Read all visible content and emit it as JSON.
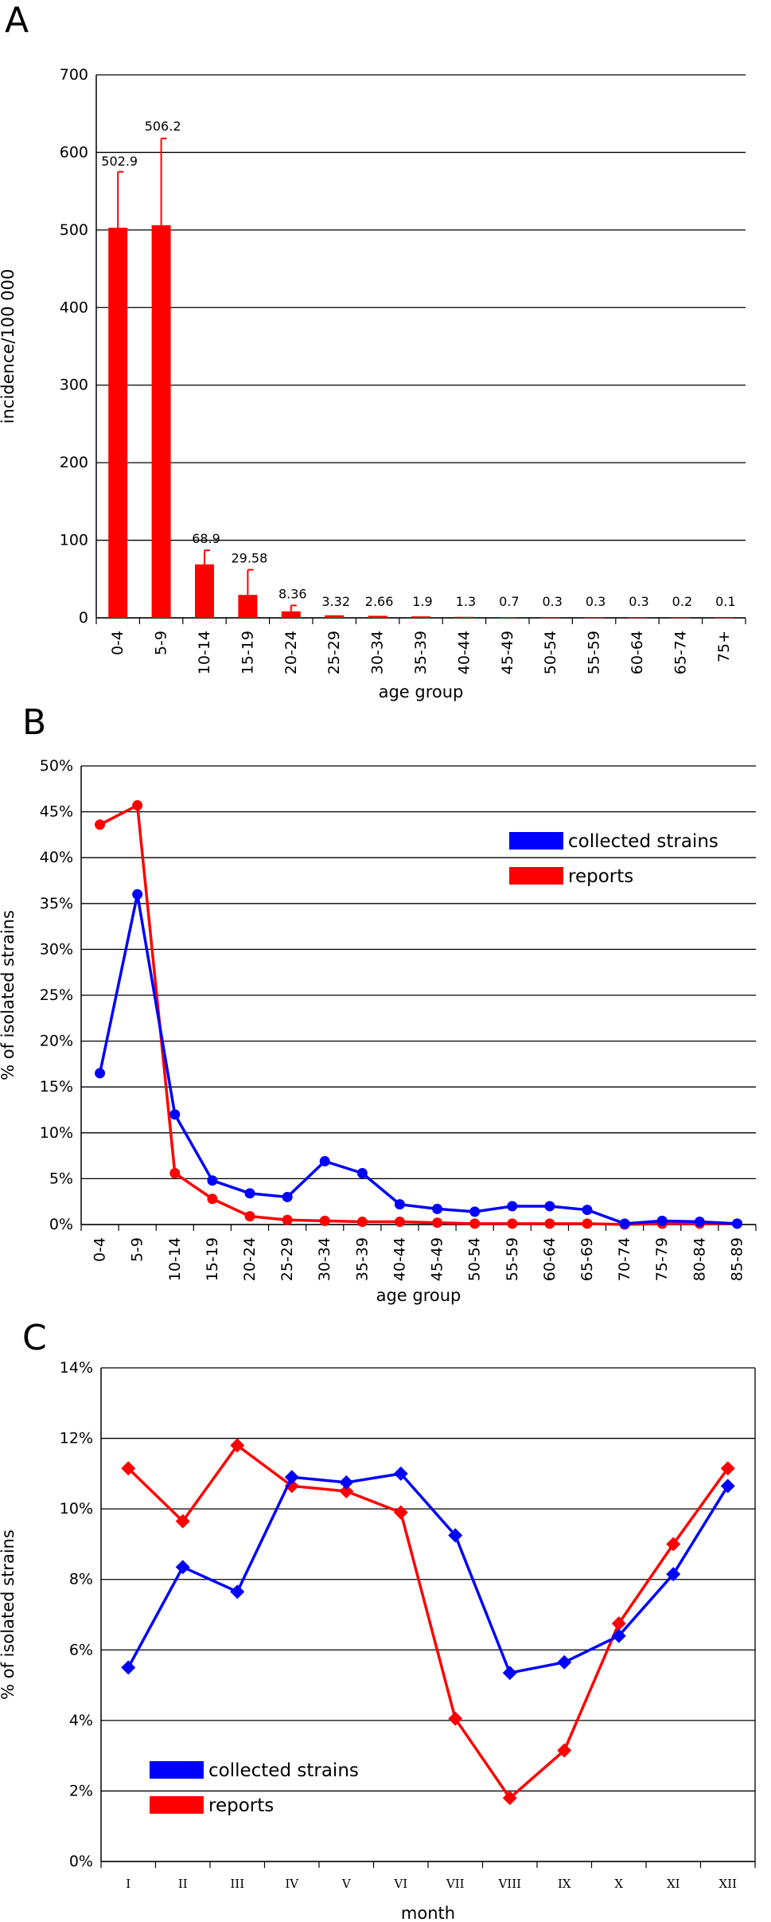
{
  "colors": {
    "red": "#ff0000",
    "blue": "#0000ff",
    "grid": "#000000"
  },
  "chart_data": [
    {
      "panel": "A",
      "type": "bar",
      "title": "",
      "xlabel": "age group",
      "ylabel": "incidence/100 000",
      "ylim": [
        0,
        700
      ],
      "yticks": [
        "0",
        "100",
        "200",
        "300",
        "400",
        "500",
        "600",
        "700"
      ],
      "categories": [
        "0-4",
        "5-9",
        "10-14",
        "15-19",
        "20-24",
        "25-29",
        "30-34",
        "35-39",
        "40-44",
        "45-49",
        "50-54",
        "55-59",
        "60-64",
        "65-74",
        "75+"
      ],
      "values": [
        502.9,
        506.2,
        68.9,
        29.58,
        8.36,
        3.32,
        2.66,
        1.9,
        1.3,
        0.7,
        0.3,
        0.3,
        0.3,
        0.2,
        0.1
      ],
      "labels": [
        "502.9",
        "506.2",
        "68.9",
        "29.58",
        "8.36",
        "3.32",
        "2.66",
        "1.9",
        "1.3",
        "0.7",
        "0.3",
        "0.3",
        "0.3",
        "0.2",
        "0.1"
      ],
      "error_upper": [
        575,
        618,
        87,
        62,
        16,
        null,
        null,
        null,
        null,
        null,
        null,
        null,
        null,
        null,
        null
      ],
      "color": "#ff0000"
    },
    {
      "panel": "B",
      "type": "line",
      "title": "",
      "xlabel": "age group",
      "ylabel": "% of isolated strains",
      "ylim": [
        0,
        50
      ],
      "yticks": [
        "0%",
        "5%",
        "10%",
        "15%",
        "20%",
        "25%",
        "30%",
        "35%",
        "40%",
        "45%",
        "50%"
      ],
      "categories": [
        "0-4",
        "5-9",
        "10-14",
        "15-19",
        "20-24",
        "25-29",
        "30-34",
        "35-39",
        "40-44",
        "45-49",
        "50-54",
        "55-59",
        "60-64",
        "65-69",
        "70-74",
        "75-79",
        "80-84",
        "85-89"
      ],
      "series": [
        {
          "name": "collected strains",
          "color": "#0000ff",
          "values": [
            16.5,
            36.0,
            12.0,
            4.8,
            3.4,
            3.0,
            6.9,
            5.6,
            2.2,
            1.7,
            1.4,
            2.0,
            2.0,
            1.6,
            0.1,
            0.4,
            0.3,
            0.1
          ]
        },
        {
          "name": "reports",
          "color": "#ff0000",
          "values": [
            43.6,
            45.7,
            5.6,
            2.8,
            0.9,
            0.5,
            0.4,
            0.3,
            0.3,
            0.2,
            0.1,
            0.1,
            0.1,
            0.1,
            0.0,
            0.1,
            0.1,
            0.1
          ]
        }
      ],
      "legend": "top-right"
    },
    {
      "panel": "C",
      "type": "line",
      "title": "",
      "xlabel": "month",
      "ylabel": "% of isolated strains",
      "ylim": [
        0,
        14
      ],
      "yticks": [
        "0%",
        "2%",
        "4%",
        "6%",
        "8%",
        "10%",
        "12%",
        "14%"
      ],
      "categories": [
        "I",
        "II",
        "III",
        "IV",
        "V",
        "VI",
        "VII",
        "VIII",
        "IX",
        "X",
        "XI",
        "XII"
      ],
      "series": [
        {
          "name": "collected strains",
          "color": "#0000ff",
          "values": [
            5.5,
            8.35,
            7.65,
            10.9,
            10.75,
            11.0,
            9.25,
            5.35,
            5.65,
            6.4,
            8.15,
            10.65
          ]
        },
        {
          "name": "reports",
          "color": "#ff0000",
          "values": [
            11.15,
            9.65,
            11.8,
            10.65,
            10.5,
            9.9,
            4.05,
            1.8,
            3.15,
            6.75,
            9.0,
            11.15
          ]
        }
      ],
      "legend": "bottom-left"
    }
  ]
}
